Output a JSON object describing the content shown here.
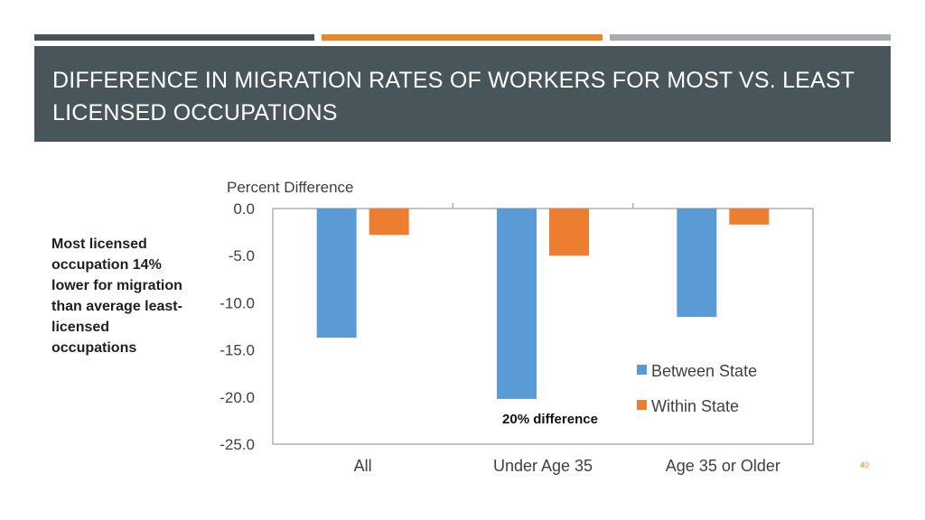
{
  "slide": {
    "title": "Difference in migration rates of workers for most vs. least licensed occupations",
    "side_note": "Most licensed occupation 14% lower for migration than average least-licensed occupations",
    "page_number": "40"
  },
  "colors": {
    "band_dark": "#44545a",
    "band_orange": "#e8892c",
    "band_gray": "#a7abae",
    "title_bg": "#48555b",
    "between_state": "#5b9bd5",
    "within_state": "#ed7d31"
  },
  "chart_data": {
    "type": "bar",
    "ylabel": "Percent Difference",
    "categories": [
      "All",
      "Under Age 35",
      "Age 35 or Older"
    ],
    "series": [
      {
        "name": "Between State",
        "values": [
          -13.7,
          -20.2,
          -11.5
        ]
      },
      {
        "name": "Within State",
        "values": [
          -2.8,
          -5.0,
          -1.7
        ]
      }
    ],
    "ylim": [
      -25,
      0
    ],
    "yticks": [
      0,
      -5,
      -10,
      -15,
      -20,
      -25
    ],
    "ytick_labels": [
      "0.0",
      "-5.0",
      "-10.0",
      "-15.0",
      "-20.0",
      "-25.0"
    ],
    "grid": false,
    "legend_position": "bottom-right",
    "annotations": [
      {
        "text": "20% difference",
        "category": "Under Age 35",
        "y": -22.2
      }
    ]
  }
}
